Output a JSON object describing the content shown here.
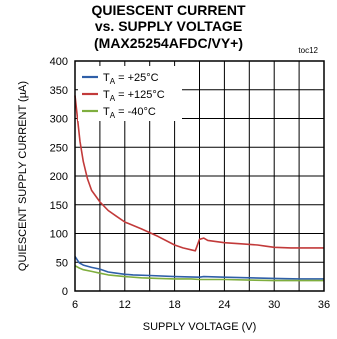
{
  "chart_data": {
    "type": "line",
    "title_lines": [
      "QUIESCENT CURRENT",
      "vs. SUPPLY VOLTAGE",
      "(MAX25254AFDC/VY+)"
    ],
    "tag": "toc12",
    "xlabel": "SUPPLY VOLTAGE (V)",
    "ylabel": "QUIESCENT SUPPLY CURRENT (µA)",
    "xlim": [
      6,
      36
    ],
    "ylim": [
      0,
      400
    ],
    "xticks": [
      6,
      12,
      18,
      24,
      30,
      36
    ],
    "yticks": [
      0,
      50,
      100,
      150,
      200,
      250,
      300,
      350,
      400
    ],
    "x_grid_step": 3,
    "grid": true,
    "legend_position": "top-left",
    "series": [
      {
        "sub": "A",
        "legend_value": "= +25°C",
        "color": "#2f5fa8",
        "points": [
          [
            6,
            60
          ],
          [
            6.5,
            49
          ],
          [
            7,
            45
          ],
          [
            8,
            41
          ],
          [
            9,
            38
          ],
          [
            10,
            33
          ],
          [
            11,
            31
          ],
          [
            12,
            29
          ],
          [
            13,
            28
          ],
          [
            15,
            27
          ],
          [
            18,
            25
          ],
          [
            21,
            24
          ],
          [
            21.5,
            25
          ],
          [
            24,
            24
          ],
          [
            27,
            23
          ],
          [
            30,
            22
          ],
          [
            33,
            21
          ],
          [
            36,
            21
          ]
        ]
      },
      {
        "sub": "A",
        "legend_value": "= +125°C",
        "color": "#c23a3a",
        "points": [
          [
            6,
            340
          ],
          [
            6.3,
            300
          ],
          [
            6.6,
            260
          ],
          [
            7,
            225
          ],
          [
            7.5,
            195
          ],
          [
            8,
            175
          ],
          [
            9,
            155
          ],
          [
            10,
            140
          ],
          [
            11,
            130
          ],
          [
            12,
            120
          ],
          [
            14,
            108
          ],
          [
            16,
            95
          ],
          [
            18,
            80
          ],
          [
            19,
            75
          ],
          [
            20.5,
            70
          ],
          [
            21,
            90
          ],
          [
            21.5,
            92
          ],
          [
            22,
            88
          ],
          [
            24,
            84
          ],
          [
            26,
            82
          ],
          [
            28,
            80
          ],
          [
            29,
            78
          ],
          [
            30,
            76
          ],
          [
            32,
            75
          ],
          [
            34,
            75
          ],
          [
            36,
            75
          ]
        ]
      },
      {
        "sub": "A",
        "legend_value": "= -40°C",
        "color": "#7fae3e",
        "points": [
          [
            6,
            44
          ],
          [
            6.5,
            40
          ],
          [
            7,
            37
          ],
          [
            8,
            34
          ],
          [
            9,
            31
          ],
          [
            10,
            28
          ],
          [
            12,
            25
          ],
          [
            14,
            23
          ],
          [
            16,
            22
          ],
          [
            18,
            21
          ],
          [
            20,
            21
          ],
          [
            21,
            20
          ],
          [
            24,
            20
          ],
          [
            27,
            19
          ],
          [
            30,
            18
          ],
          [
            33,
            18
          ],
          [
            36,
            18
          ]
        ]
      }
    ]
  }
}
